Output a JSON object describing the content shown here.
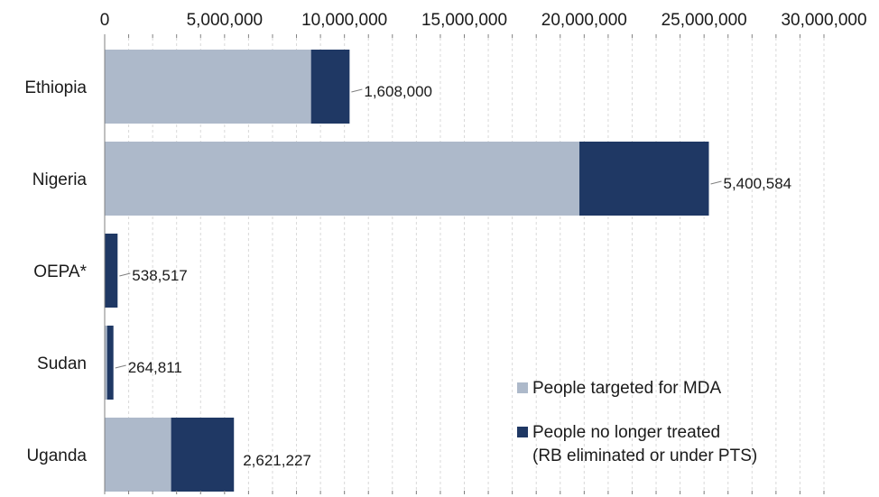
{
  "chart_data": {
    "type": "bar",
    "orientation": "horizontal",
    "stacked": true,
    "categories": [
      "Ethiopia",
      "Nigeria",
      "OEPA*",
      "Sudan",
      "Uganda"
    ],
    "series": [
      {
        "name": "People targeted for MDA",
        "values": [
          8607000,
          19800000,
          0,
          100000,
          2770000
        ],
        "color": "#adb9ca"
      },
      {
        "name": "People no longer treated (RB eliminated or under PTS)",
        "values": [
          1608000,
          5400584,
          538517,
          264811,
          2621227
        ],
        "color": "#1f3864"
      }
    ],
    "data_labels": [
      "1,608,000",
      "5,400,584",
      "538,517",
      "264,811",
      "2,621,227"
    ],
    "x_ticks": [
      "0",
      "5,000,000",
      "10,000,000",
      "15,000,000",
      "20,000,000",
      "25,000,000",
      "30,000,000"
    ],
    "xlim": [
      0,
      30000000
    ],
    "xlabel": "",
    "ylabel": "",
    "title": "",
    "grid": "vertical dashed minor gridlines",
    "legend": {
      "position": "bottom-right",
      "items": [
        {
          "lines": [
            "People targeted for MDA"
          ],
          "color": "#adb9ca"
        },
        {
          "lines": [
            "People no longer treated",
            "(RB eliminated or under PTS)"
          ],
          "color": "#1f3864"
        }
      ]
    }
  }
}
